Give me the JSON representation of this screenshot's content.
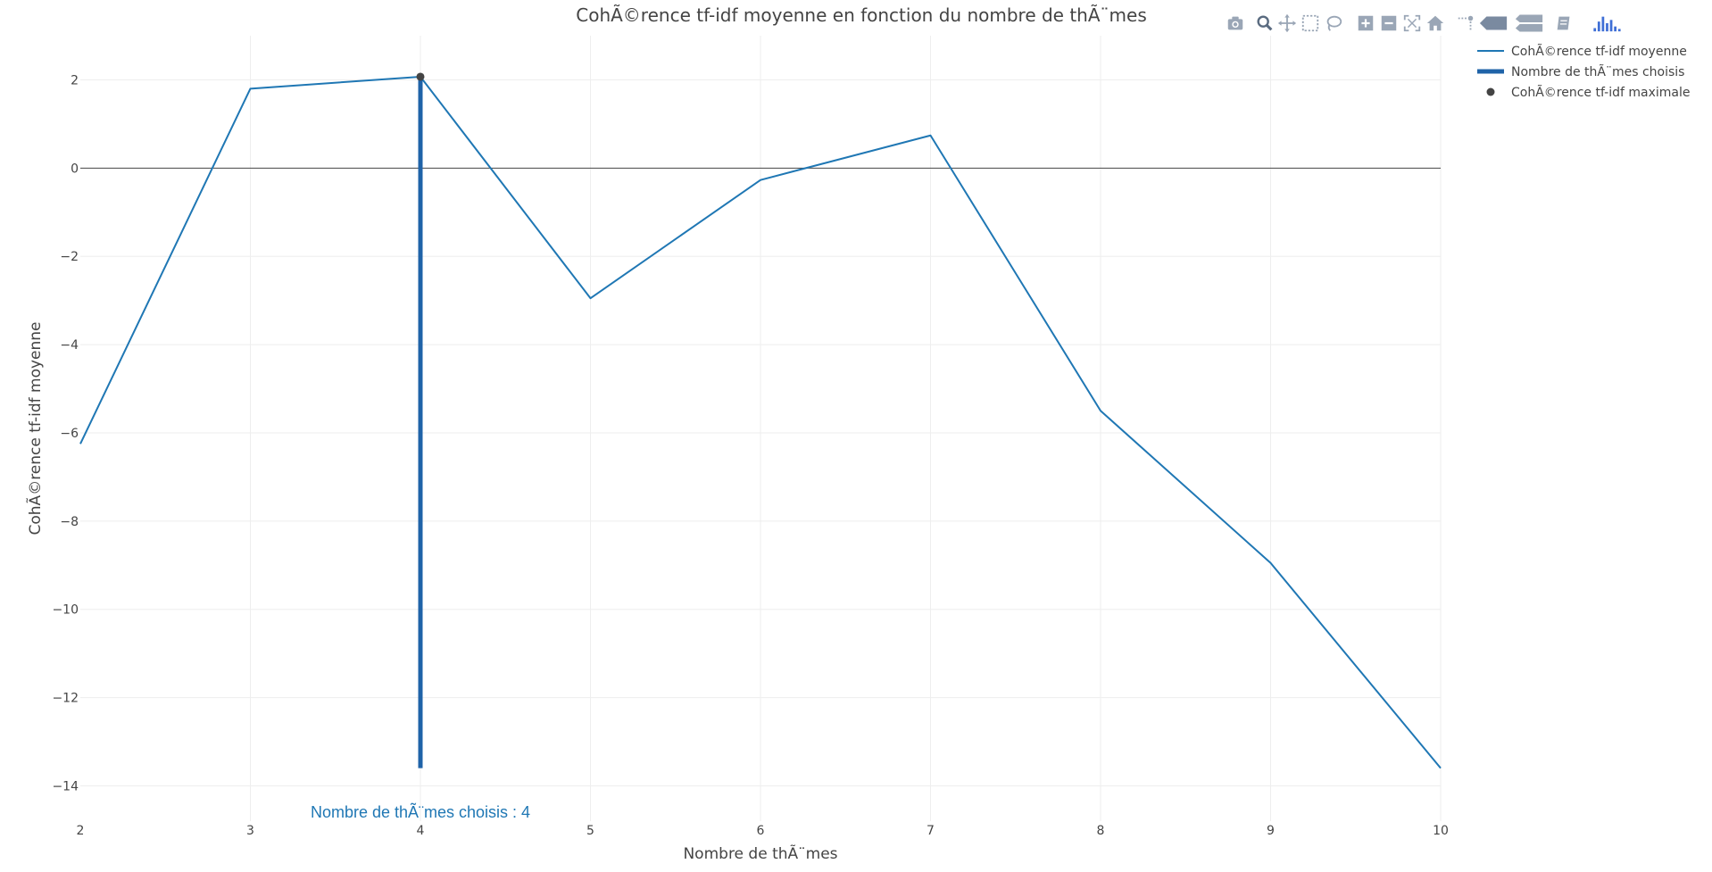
{
  "chart_data": {
    "type": "line",
    "title": "CohÃ©rence tf-idf moyenne en fonction du nombre de thÃ¨mes",
    "xlabel": "Nombre de thÃ¨mes",
    "ylabel": "CohÃ©rence tf-idf moyenne",
    "xlim": [
      2,
      10
    ],
    "ylim": [
      -14.8,
      3.0
    ],
    "x_ticks": [
      2,
      3,
      4,
      5,
      6,
      7,
      8,
      9,
      10
    ],
    "y_ticks": [
      2,
      0,
      -2,
      -4,
      -6,
      -8,
      -10,
      -12,
      -14
    ],
    "y_tick_labels": [
      "2",
      "0",
      "−2",
      "−4",
      "−6",
      "−8",
      "−10",
      "−12",
      "−14"
    ],
    "grid": true,
    "zeroline": true,
    "legend_position": "top-right",
    "series": [
      {
        "name": "CohÃ©rence tf-idf moyenne",
        "kind": "line",
        "color": "#1f77b4",
        "x": [
          2,
          3,
          4,
          5,
          6,
          7,
          8,
          9,
          10
        ],
        "y": [
          -6.25,
          1.8,
          2.07,
          -2.95,
          -0.27,
          0.74,
          -5.5,
          -8.95,
          -13.6
        ]
      },
      {
        "name": "Nombre de thÃ¨mes choisis",
        "kind": "vline",
        "color": "#1f63a8",
        "x": [
          4,
          4
        ],
        "y": [
          -13.6,
          2.07
        ]
      },
      {
        "name": "CohÃ©rence tf-idf maximale",
        "kind": "marker",
        "color": "#444444",
        "x": [
          4
        ],
        "y": [
          2.07
        ]
      }
    ],
    "annotations": [
      {
        "text": "Nombre de thÃ¨mes choisis : 4",
        "x": 4,
        "y": -14.6,
        "color": "#1f77b4"
      }
    ]
  },
  "modebar": {
    "icons": [
      "camera-icon",
      "zoom-icon",
      "pan-icon",
      "box-select-icon",
      "lasso-icon",
      "zoom-in-icon",
      "zoom-out-icon",
      "autoscale-icon",
      "reset-axes-icon",
      "spike-lines-icon",
      "hover-closest-icon",
      "hover-compare-icon",
      "edit-chart-icon",
      "plotly-logo-icon"
    ]
  }
}
